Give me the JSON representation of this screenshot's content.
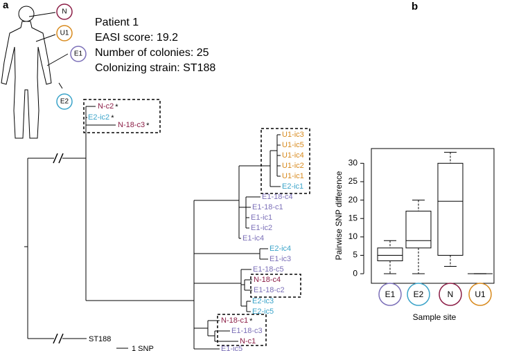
{
  "panel_a": {
    "label": "a",
    "info": [
      "Patient 1",
      "EASI score: 19.2",
      "Number of colonies: 25",
      "Colonizing strain: ST188"
    ],
    "body_sites": [
      {
        "label": "N",
        "color": "#8b1d45"
      },
      {
        "label": "U1",
        "color": "#d88a1d"
      },
      {
        "label": "E1",
        "color": "#7b6fb8"
      },
      {
        "label": "E2",
        "color": "#3aa3c9"
      }
    ],
    "leaves": [
      {
        "label": "N-c2",
        "color": "#8b1d45",
        "marker": "*"
      },
      {
        "label": "E2-ic2",
        "color": "#3aa3c9",
        "marker": "*"
      },
      {
        "label": "N-18-c3",
        "color": "#8b1d45",
        "marker": "*"
      },
      {
        "label": "U1-ic3",
        "color": "#d88a1d"
      },
      {
        "label": "U1-ic5",
        "color": "#d88a1d"
      },
      {
        "label": "U1-ic4",
        "color": "#d88a1d"
      },
      {
        "label": "U1-ic2",
        "color": "#d88a1d"
      },
      {
        "label": "U1-ic1",
        "color": "#d88a1d"
      },
      {
        "label": "E2-ic1",
        "color": "#3aa3c9"
      },
      {
        "label": "E1-18-c4",
        "color": "#7b6fb8"
      },
      {
        "label": "E1-18-c1",
        "color": "#7b6fb8"
      },
      {
        "label": "E1-ic1",
        "color": "#7b6fb8"
      },
      {
        "label": "E1-ic2",
        "color": "#7b6fb8"
      },
      {
        "label": "E1-ic4",
        "color": "#7b6fb8"
      },
      {
        "label": "E2-ic4",
        "color": "#3aa3c9"
      },
      {
        "label": "E1-ic3",
        "color": "#7b6fb8"
      },
      {
        "label": "E1-18-c5",
        "color": "#7b6fb8"
      },
      {
        "label": "N-18-c4",
        "color": "#8b1d45"
      },
      {
        "label": "E1-18-c2",
        "color": "#7b6fb8"
      },
      {
        "label": "E2-ic3",
        "color": "#3aa3c9"
      },
      {
        "label": "E2-ic5",
        "color": "#3aa3c9"
      },
      {
        "label": "N-18-c1",
        "color": "#8b1d45",
        "marker": "*"
      },
      {
        "label": "E1-18-c3",
        "color": "#7b6fb8"
      },
      {
        "label": "N-c1",
        "color": "#8b1d45"
      },
      {
        "label": "E1-ic5",
        "color": "#7b6fb8"
      }
    ],
    "outgroup": "ST188",
    "scale_label": "1 SNP"
  },
  "chart_data": {
    "type": "box",
    "panel_label": "b",
    "y_label": "Pairwise SNP difference",
    "x_label": "Sample site",
    "categories": [
      "E1",
      "E2",
      "N",
      "U1"
    ],
    "category_colors": [
      "#7b6fb8",
      "#3aa3c9",
      "#8b1d45",
      "#d88a1d"
    ],
    "boxes": [
      {
        "min": 0,
        "q1": 3.5,
        "median": 5,
        "q3": 7,
        "max": 9
      },
      {
        "min": 0,
        "q1": 7,
        "median": 9,
        "q3": 17,
        "max": 20
      },
      {
        "min": 2,
        "q1": 5,
        "median": 19.7,
        "q3": 30,
        "max": 33
      },
      {
        "min": 0,
        "q1": 0,
        "median": 0,
        "q3": 0,
        "max": 0
      }
    ],
    "ylim": [
      -2.6,
      34
    ],
    "yticks": [
      0,
      5,
      10,
      15,
      20,
      25,
      30
    ]
  }
}
